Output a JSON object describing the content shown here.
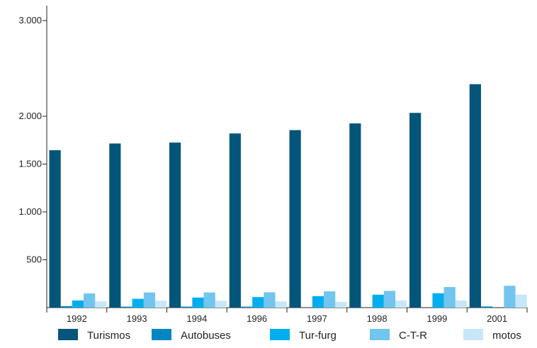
{
  "chart_data": {
    "type": "bar",
    "title": "",
    "xlabel": "",
    "ylabel": "",
    "categories": [
      "1992",
      "1993",
      "1994",
      "1996",
      "1997",
      "1998",
      "1999",
      "2001"
    ],
    "ylim": [
      0,
      3000
    ],
    "yticks": [
      500,
      1000,
      1500,
      2000,
      3000
    ],
    "ytick_labels": [
      "500",
      "1.000",
      "1.500",
      "2.000",
      "3.000"
    ],
    "grid": false,
    "legend_position": "bottom",
    "series": [
      {
        "name": "Turismos",
        "color": "#03557a",
        "values": [
          1645,
          1715,
          1725,
          1820,
          1855,
          1925,
          2035,
          2335
        ]
      },
      {
        "name": "Autobuses",
        "color": "#0087c2",
        "values": [
          15,
          10,
          10,
          10,
          0,
          0,
          0,
          12
        ]
      },
      {
        "name": "Tur-furg",
        "color": "#00aeef",
        "values": [
          75,
          92,
          105,
          110,
          120,
          135,
          150,
          0
        ]
      },
      {
        "name": "C-T-R",
        "color": "#71c5ee",
        "values": [
          148,
          158,
          158,
          160,
          170,
          175,
          215,
          228
        ]
      },
      {
        "name": "motos",
        "color": "#c7e7f8",
        "values": [
          65,
          72,
          72,
          65,
          60,
          75,
          75,
          135
        ]
      }
    ]
  }
}
